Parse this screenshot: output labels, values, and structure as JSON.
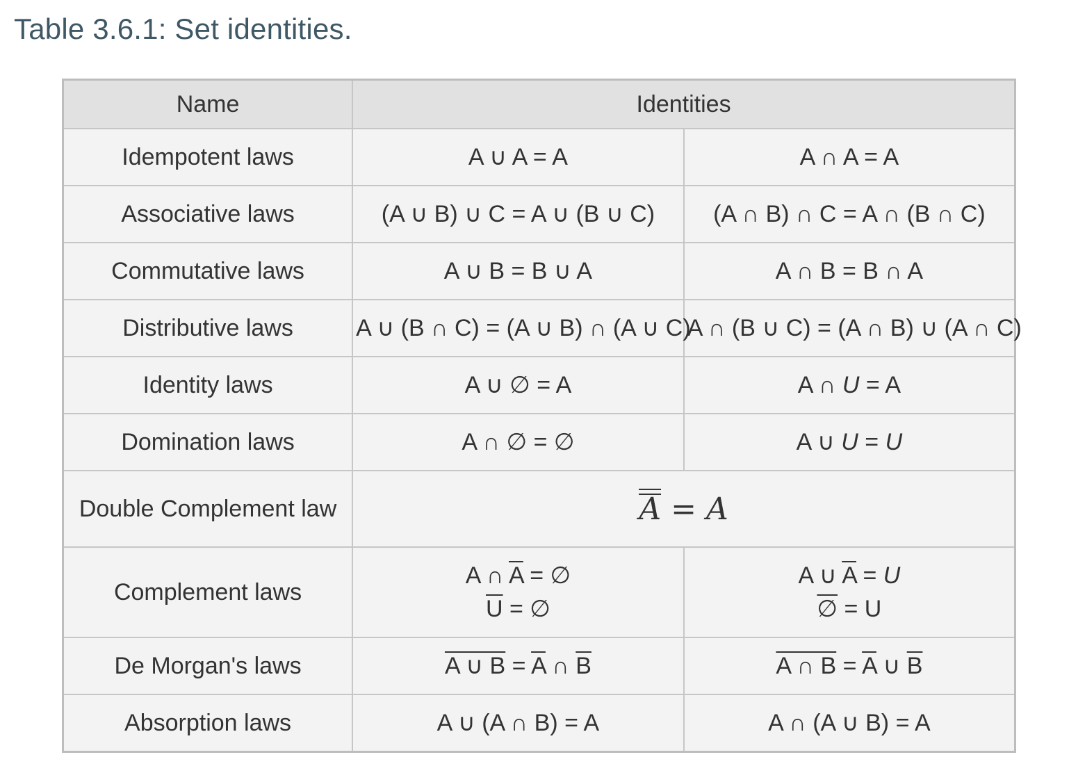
{
  "caption": "Table 3.6.1: Set identities.",
  "header": {
    "name": "Name",
    "identities": "Identities"
  },
  "rows": [
    {
      "name": "Idempotent laws",
      "left": "A ∪ A = A",
      "right": "A ∩ A = A"
    },
    {
      "name": "Associative laws",
      "left": "(A ∪ B) ∪ C = A ∪ (B ∪ C)",
      "right": "(A ∩ B) ∩ C = A ∩ (B ∩ C)"
    },
    {
      "name": "Commutative laws",
      "left": "A ∪ B = B ∪ A",
      "right": "A ∩ B = B ∩ A"
    },
    {
      "name": "Distributive laws",
      "left": "A ∪ (B ∩ C) = (A ∪ B) ∩ (A ∪ C)",
      "right": "A ∩ (B ∪ C) = (A ∩ B) ∪ (A ∩ C)"
    },
    {
      "name": "Identity laws",
      "left": "A ∪ ∅ = A",
      "right": "A ∩ U = A"
    },
    {
      "name": "Domination laws",
      "left": "A ∩ ∅ = ∅",
      "right": "A ∪ U = U"
    },
    {
      "name": "Double Complement law",
      "combined": "A = A"
    },
    {
      "name": "Complement laws",
      "left_line1": "A ∩ A = ∅",
      "left_line2": "U = ∅",
      "right_line1": "A ∪ A = U",
      "right_line2": "∅ = U"
    },
    {
      "name": "De Morgan's laws",
      "left": "A ∪ B = A ∩ B",
      "right": "A ∩ B = A ∪ B"
    },
    {
      "name": "Absorption laws",
      "left": "A ∪ (A ∩ B) = A",
      "right": "A ∩ (A ∪ B) = A"
    }
  ]
}
